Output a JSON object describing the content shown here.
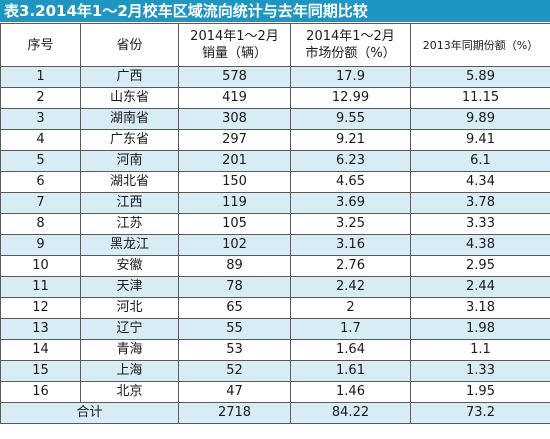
{
  "title": "表3.2014年1～2月校车区域流向统计与去年同期比较",
  "headers": {
    "seq": "序号",
    "province": "省份",
    "sales_line1": "2014年1～2月",
    "sales_line2": "销量（辆）",
    "share_line1": "2014年1～2月",
    "share_line2": "市场份额（%）",
    "prev_share": "2013年同期份额（%）"
  },
  "rows": [
    {
      "seq": "1",
      "province": "广西",
      "sales": "578",
      "share": "17.9",
      "prev": "5.89"
    },
    {
      "seq": "2",
      "province": "山东省",
      "sales": "419",
      "share": "12.99",
      "prev": "11.15"
    },
    {
      "seq": "3",
      "province": "湖南省",
      "sales": "308",
      "share": "9.55",
      "prev": "9.89"
    },
    {
      "seq": "4",
      "province": "广东省",
      "sales": "297",
      "share": "9.21",
      "prev": "9.41"
    },
    {
      "seq": "5",
      "province": "河南",
      "sales": "201",
      "share": "6.23",
      "prev": "6.1"
    },
    {
      "seq": "6",
      "province": "湖北省",
      "sales": "150",
      "share": "4.65",
      "prev": "4.34"
    },
    {
      "seq": "7",
      "province": "江西",
      "sales": "119",
      "share": "3.69",
      "prev": "3.78"
    },
    {
      "seq": "8",
      "province": "江苏",
      "sales": "105",
      "share": "3.25",
      "prev": "3.33"
    },
    {
      "seq": "9",
      "province": "黑龙江",
      "sales": "102",
      "share": "3.16",
      "prev": "4.38"
    },
    {
      "seq": "10",
      "province": "安徽",
      "sales": "89",
      "share": "2.76",
      "prev": "2.95"
    },
    {
      "seq": "11",
      "province": "天津",
      "sales": "78",
      "share": "2.42",
      "prev": "2.44"
    },
    {
      "seq": "12",
      "province": "河北",
      "sales": "65",
      "share": "2",
      "prev": "3.18"
    },
    {
      "seq": "13",
      "province": "辽宁",
      "sales": "55",
      "share": "1.7",
      "prev": "1.98"
    },
    {
      "seq": "14",
      "province": "青海",
      "sales": "53",
      "share": "1.64",
      "prev": "1.1"
    },
    {
      "seq": "15",
      "province": "上海",
      "sales": "52",
      "share": "1.61",
      "prev": "1.33"
    },
    {
      "seq": "16",
      "province": "北京",
      "sales": "47",
      "share": "1.46",
      "prev": "1.95"
    }
  ],
  "total": {
    "label": "合计",
    "sales": "2718",
    "share": "84.22",
    "prev": "73.2"
  },
  "colors": {
    "title_bg": "#1f96c2",
    "title_text": "#ffffff",
    "stripe": "#d8ecf5",
    "border": "#5a5a5a"
  }
}
